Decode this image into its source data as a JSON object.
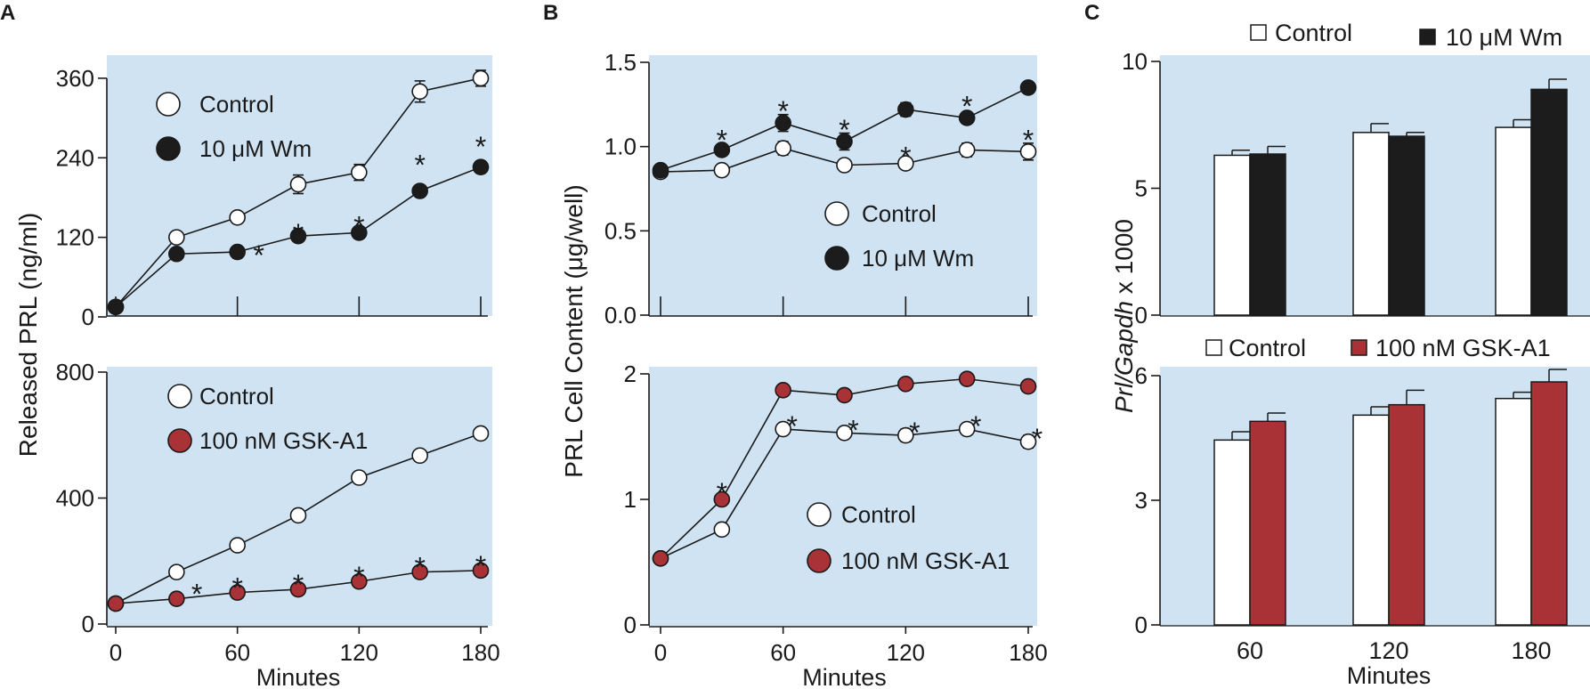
{
  "colors": {
    "panel_bg": "#cfe3f3",
    "control_fill": "#ffffff",
    "wm_fill": "#1c1c1c",
    "gsk_fill": "#a83236",
    "stroke": "#1a1a1a"
  },
  "panel_letters": {
    "a": "A",
    "b": "B",
    "c": "C"
  },
  "chart_data": [
    {
      "id": "A-top",
      "type": "line",
      "panel": "A",
      "ylabel": "Released PRL (ng/ml)",
      "xlabel": "Minutes",
      "x": [
        0,
        30,
        60,
        90,
        120,
        150,
        180
      ],
      "ylim": [
        0,
        380
      ],
      "yticks": [
        0,
        120,
        240,
        360
      ],
      "xticks": [
        0,
        60,
        120,
        180
      ],
      "series": [
        {
          "name": "Control",
          "color": "#ffffff",
          "values": [
            15,
            120,
            150,
            200,
            218,
            340,
            360
          ],
          "errors": [
            4,
            5,
            6,
            14,
            12,
            16,
            12
          ]
        },
        {
          "name": "10 μM Wm",
          "color": "#1c1c1c",
          "values": [
            15,
            95,
            98,
            122,
            127,
            190,
            226
          ],
          "errors": [
            4,
            4,
            4,
            5,
            5,
            6,
            9
          ]
        }
      ],
      "significance_x": [
        60,
        90,
        120,
        150,
        180
      ],
      "significance_mark": "*"
    },
    {
      "id": "A-bottom",
      "type": "line",
      "panel": "A",
      "ylabel": "",
      "xlabel": "Minutes",
      "x": [
        0,
        30,
        60,
        90,
        120,
        150,
        180
      ],
      "ylim": [
        0,
        800
      ],
      "yticks": [
        0,
        400,
        800
      ],
      "xticks": [
        0,
        60,
        120,
        180
      ],
      "series": [
        {
          "name": "Control",
          "color": "#ffffff",
          "values": [
            65,
            165,
            250,
            345,
            465,
            535,
            605
          ],
          "errors": [
            5,
            8,
            10,
            10,
            12,
            14,
            16
          ]
        },
        {
          "name": "100 nM GSK-A1",
          "color": "#a83236",
          "values": [
            65,
            80,
            100,
            110,
            135,
            165,
            170
          ],
          "errors": [
            4,
            4,
            5,
            6,
            6,
            8,
            8
          ]
        }
      ],
      "significance_x": [
        30,
        60,
        90,
        120,
        150,
        180
      ],
      "significance_mark": "*"
    },
    {
      "id": "B-top",
      "type": "line",
      "panel": "B",
      "ylabel": "PRL Cell Content (μg/well)",
      "xlabel": "Minutes",
      "x": [
        0,
        30,
        60,
        90,
        120,
        150,
        180
      ],
      "ylim": [
        0,
        1.5
      ],
      "yticks": [
        0,
        0.5,
        1.0,
        1.5
      ],
      "xticks": [
        0,
        60,
        120,
        180
      ],
      "series": [
        {
          "name": "Control",
          "color": "#ffffff",
          "values": [
            0.85,
            0.86,
            0.99,
            0.89,
            0.9,
            0.98,
            0.97
          ],
          "errors": [
            0.02,
            0.03,
            0.04,
            0.03,
            0.02,
            0.04,
            0.05
          ]
        },
        {
          "name": "10 μM Wm",
          "color": "#1c1c1c",
          "values": [
            0.86,
            0.98,
            1.14,
            1.03,
            1.22,
            1.17,
            1.35
          ],
          "errors": [
            0.02,
            0.03,
            0.05,
            0.05,
            0.04,
            0.03,
            0.02
          ]
        }
      ],
      "significance_x": [
        30,
        60,
        90,
        120,
        150,
        180
      ],
      "significance_mark": "*"
    },
    {
      "id": "B-bottom",
      "type": "line",
      "panel": "B",
      "ylabel": "",
      "xlabel": "Minutes",
      "x": [
        0,
        30,
        60,
        90,
        120,
        150,
        180
      ],
      "ylim": [
        0,
        2
      ],
      "yticks": [
        0,
        1,
        2
      ],
      "xticks": [
        0,
        60,
        120,
        180
      ],
      "series": [
        {
          "name": "Control",
          "color": "#ffffff",
          "values": [
            0.53,
            0.76,
            1.56,
            1.53,
            1.51,
            1.56,
            1.46
          ],
          "errors": [
            0.02,
            0.02,
            0.03,
            0.04,
            0.05,
            0.04,
            0.05
          ]
        },
        {
          "name": "100 nM GSK-A1",
          "color": "#a83236",
          "values": [
            0.53,
            1.0,
            1.87,
            1.83,
            1.92,
            1.96,
            1.9
          ],
          "errors": [
            0.02,
            0.02,
            0.02,
            0.03,
            0.02,
            0.02,
            0.02
          ]
        }
      ],
      "significance_x": [
        30,
        60,
        90,
        120,
        150,
        180
      ],
      "significance_mark": "*"
    },
    {
      "id": "C-top",
      "type": "bar",
      "panel": "C",
      "ylabel": "Prl/Gapdh x 1000",
      "ylabel_italic": "Prl/Gapdh",
      "ylabel_plain": " x 1000",
      "xlabel": "Minutes",
      "categories": [
        "60",
        "120",
        "180"
      ],
      "ylim": [
        0,
        10
      ],
      "yticks": [
        0,
        5,
        10
      ],
      "series": [
        {
          "name": "Control",
          "color": "#ffffff",
          "values": [
            6.3,
            7.2,
            7.4
          ],
          "errors": [
            0.2,
            0.35,
            0.3
          ]
        },
        {
          "name": "10 μM Wm",
          "color": "#1c1c1c",
          "values": [
            6.35,
            7.05,
            8.9
          ],
          "errors": [
            0.3,
            0.15,
            0.4
          ]
        }
      ]
    },
    {
      "id": "C-bottom",
      "type": "bar",
      "panel": "C",
      "ylabel": "",
      "xlabel": "Minutes",
      "categories": [
        "60",
        "120",
        "180"
      ],
      "ylim": [
        0,
        6
      ],
      "yticks": [
        0,
        3,
        6
      ],
      "series": [
        {
          "name": "Control",
          "color": "#ffffff",
          "values": [
            4.45,
            5.05,
            5.45
          ],
          "errors": [
            0.2,
            0.2,
            0.15
          ]
        },
        {
          "name": "100 nM GSK-A1",
          "color": "#a83236",
          "values": [
            4.9,
            5.3,
            5.85
          ],
          "errors": [
            0.2,
            0.35,
            0.3
          ]
        }
      ]
    }
  ]
}
